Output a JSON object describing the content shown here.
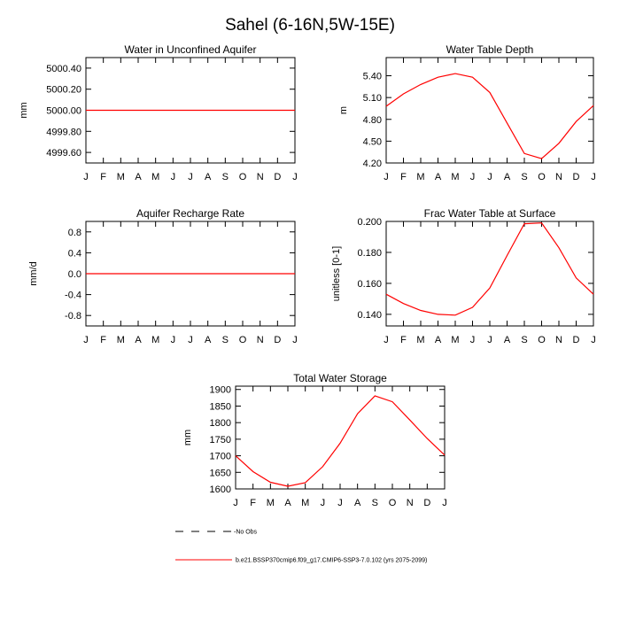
{
  "page_title": "Sahel (6-16N,5W-15E)",
  "legend": [
    {
      "label": "No Obs",
      "color": "#000000",
      "dash": true
    },
    {
      "label": "b.e21.BSSP370cmip6.f09_g17.CMIP6-SSP3-7.0.102 (yrs 2075-2099)",
      "color": "#ff0000",
      "dash": false
    }
  ],
  "chart_data": [
    {
      "type": "line",
      "title": "Water in Unconfined Aquifer",
      "xlabel": "",
      "ylabel": "mm",
      "x": [
        "J",
        "F",
        "M",
        "A",
        "M",
        "J",
        "J",
        "A",
        "S",
        "O",
        "N",
        "D",
        "J"
      ],
      "ylim": [
        4999.5,
        5000.5
      ],
      "yticks": [
        4999.6,
        4999.8,
        5000.0,
        5000.2,
        5000.4
      ],
      "ytick_labels": [
        "4999.60",
        "4999.80",
        "5000.00",
        "5000.20",
        "5000.40"
      ],
      "series": [
        {
          "color": "#ff0000",
          "values": [
            5000,
            5000,
            5000,
            5000,
            5000,
            5000,
            5000,
            5000,
            5000,
            5000,
            5000,
            5000,
            5000
          ]
        }
      ]
    },
    {
      "type": "line",
      "title": "Water Table Depth",
      "xlabel": "",
      "ylabel": "m",
      "x": [
        "J",
        "F",
        "M",
        "A",
        "M",
        "J",
        "J",
        "A",
        "S",
        "O",
        "N",
        "D",
        "J"
      ],
      "ylim": [
        4.2,
        5.65
      ],
      "yticks": [
        4.2,
        4.5,
        4.8,
        5.1,
        5.4
      ],
      "ytick_labels": [
        "4.20",
        "4.50",
        "4.80",
        "5.10",
        "5.40"
      ],
      "series": [
        {
          "color": "#ff0000",
          "values": [
            4.98,
            5.15,
            5.28,
            5.38,
            5.43,
            5.38,
            5.17,
            4.75,
            4.33,
            4.26,
            4.47,
            4.77,
            4.99
          ]
        }
      ]
    },
    {
      "type": "line",
      "title": "Aquifer Recharge Rate",
      "xlabel": "",
      "ylabel": "mm/d",
      "x": [
        "J",
        "F",
        "M",
        "A",
        "M",
        "J",
        "J",
        "A",
        "S",
        "O",
        "N",
        "D",
        "J"
      ],
      "ylim": [
        -1.0,
        1.0
      ],
      "yticks": [
        -0.8,
        -0.4,
        0.0,
        0.4,
        0.8
      ],
      "ytick_labels": [
        "-0.8",
        "-0.4",
        "0.0",
        "0.4",
        "0.8"
      ],
      "series": [
        {
          "color": "#ff0000",
          "values": [
            0,
            0,
            0,
            0,
            0,
            0,
            0,
            0,
            0,
            0,
            0,
            0,
            0
          ]
        }
      ]
    },
    {
      "type": "line",
      "title": "Frac Water Table at Surface",
      "xlabel": "",
      "ylabel": "unitless [0-1]",
      "x": [
        "J",
        "F",
        "M",
        "A",
        "M",
        "J",
        "J",
        "A",
        "S",
        "O",
        "N",
        "D",
        "J"
      ],
      "ylim": [
        0.1325,
        0.2
      ],
      "yticks": [
        0.14,
        0.16,
        0.18,
        0.2
      ],
      "ytick_labels": [
        "0.140",
        "0.160",
        "0.180",
        "0.200"
      ],
      "series": [
        {
          "color": "#ff0000",
          "values": [
            0.153,
            0.147,
            0.1425,
            0.14,
            0.1395,
            0.1445,
            0.157,
            0.178,
            0.1985,
            0.199,
            0.183,
            0.1635,
            0.153
          ]
        }
      ]
    },
    {
      "type": "line",
      "title": "Total Water Storage",
      "xlabel": "",
      "ylabel": "mm",
      "x": [
        "J",
        "F",
        "M",
        "A",
        "M",
        "J",
        "J",
        "A",
        "S",
        "O",
        "N",
        "D",
        "J"
      ],
      "ylim": [
        1600,
        1910
      ],
      "yticks": [
        1600,
        1650,
        1700,
        1750,
        1800,
        1850,
        1900
      ],
      "ytick_labels": [
        "1600",
        "1650",
        "1700",
        "1750",
        "1800",
        "1850",
        "1900"
      ],
      "series": [
        {
          "color": "#ff0000",
          "values": [
            1700,
            1652,
            1620,
            1608,
            1619,
            1667,
            1738,
            1827,
            1881,
            1863,
            1808,
            1752,
            1702
          ]
        }
      ]
    }
  ]
}
